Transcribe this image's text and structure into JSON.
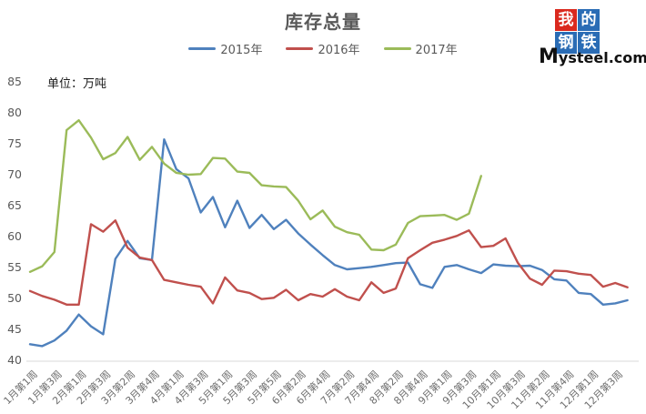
{
  "page": {
    "unit_label": "单位：万吨"
  },
  "logo": {
    "grid": [
      {
        "char": "我",
        "bg": "#DA291E"
      },
      {
        "char": "的",
        "bg": "#2A6CB5"
      },
      {
        "char": "钢",
        "bg": "#2A6CB5"
      },
      {
        "char": "铁",
        "bg": "#2A6CB5"
      }
    ],
    "brand_initial": "M",
    "brand_rest": "ysteel.com"
  },
  "chart_data": {
    "type": "line",
    "title": "库存总量",
    "ylabel": "万吨",
    "ylim": [
      40,
      85
    ],
    "ytick_step": 5,
    "grid": false,
    "legend_position": "top",
    "label_every": 2,
    "x_labels": [
      "1月第1周",
      "1月第3周",
      "2月第1周",
      "2月第3周",
      "3月第2周",
      "3月第4周",
      "4月第1周",
      "4月第3周",
      "5月第1周",
      "5月第3周",
      "5月第5周",
      "6月第2周",
      "6月第4周",
      "7月第2周",
      "7月第4周",
      "8月第2周",
      "8月第4周",
      "9月第1周",
      "9月第3周",
      "10月第1周",
      "10月第3周",
      "11月第2周",
      "11月第4周",
      "12月第1周",
      "12月第3周"
    ],
    "series": [
      {
        "name": "2015年",
        "color": "#4F81BD",
        "values": [
          42.6,
          42.3,
          43.2,
          44.8,
          47.4,
          45.5,
          44.2,
          56.4,
          59.3,
          56.5,
          56.2,
          75.7,
          70.9,
          69.4,
          63.9,
          66.4,
          61.5,
          65.8,
          61.4,
          63.5,
          61.2,
          62.7,
          60.5,
          58.7,
          57.0,
          55.4,
          54.7,
          54.9,
          55.1,
          55.4,
          55.7,
          55.8,
          52.3,
          51.7,
          55.1,
          55.4,
          54.7,
          54.1,
          55.5,
          55.3,
          55.2,
          55.3,
          54.6,
          53.1,
          52.9,
          50.9,
          50.7,
          49.0,
          49.2,
          49.7
        ]
      },
      {
        "name": "2016年",
        "color": "#C0504D",
        "values": [
          51.2,
          50.4,
          49.8,
          49.0,
          49.0,
          62.0,
          60.8,
          62.6,
          58.2,
          56.6,
          56.2,
          53.0,
          52.6,
          52.2,
          51.9,
          49.2,
          53.4,
          51.3,
          50.9,
          49.9,
          50.1,
          51.4,
          49.7,
          50.7,
          50.3,
          51.5,
          50.3,
          49.7,
          52.6,
          50.9,
          51.6,
          56.5,
          57.8,
          59.0,
          59.5,
          60.1,
          61.0,
          58.3,
          58.5,
          59.7,
          55.8,
          53.2,
          52.2,
          54.5,
          54.4,
          54.0,
          53.8,
          51.9,
          52.5,
          51.8
        ]
      },
      {
        "name": "2017年",
        "color": "#9BBB59",
        "values": [
          54.3,
          55.2,
          57.5,
          77.2,
          78.8,
          76.0,
          72.5,
          73.5,
          76.1,
          72.4,
          74.5,
          71.8,
          70.3,
          70.0,
          70.1,
          72.7,
          72.6,
          70.5,
          70.3,
          68.3,
          68.1,
          68.0,
          65.8,
          62.8,
          64.2,
          61.6,
          60.7,
          60.3,
          57.9,
          57.8,
          58.7,
          62.2,
          63.3,
          63.4,
          63.5,
          62.7,
          63.7,
          69.8
        ]
      }
    ]
  }
}
